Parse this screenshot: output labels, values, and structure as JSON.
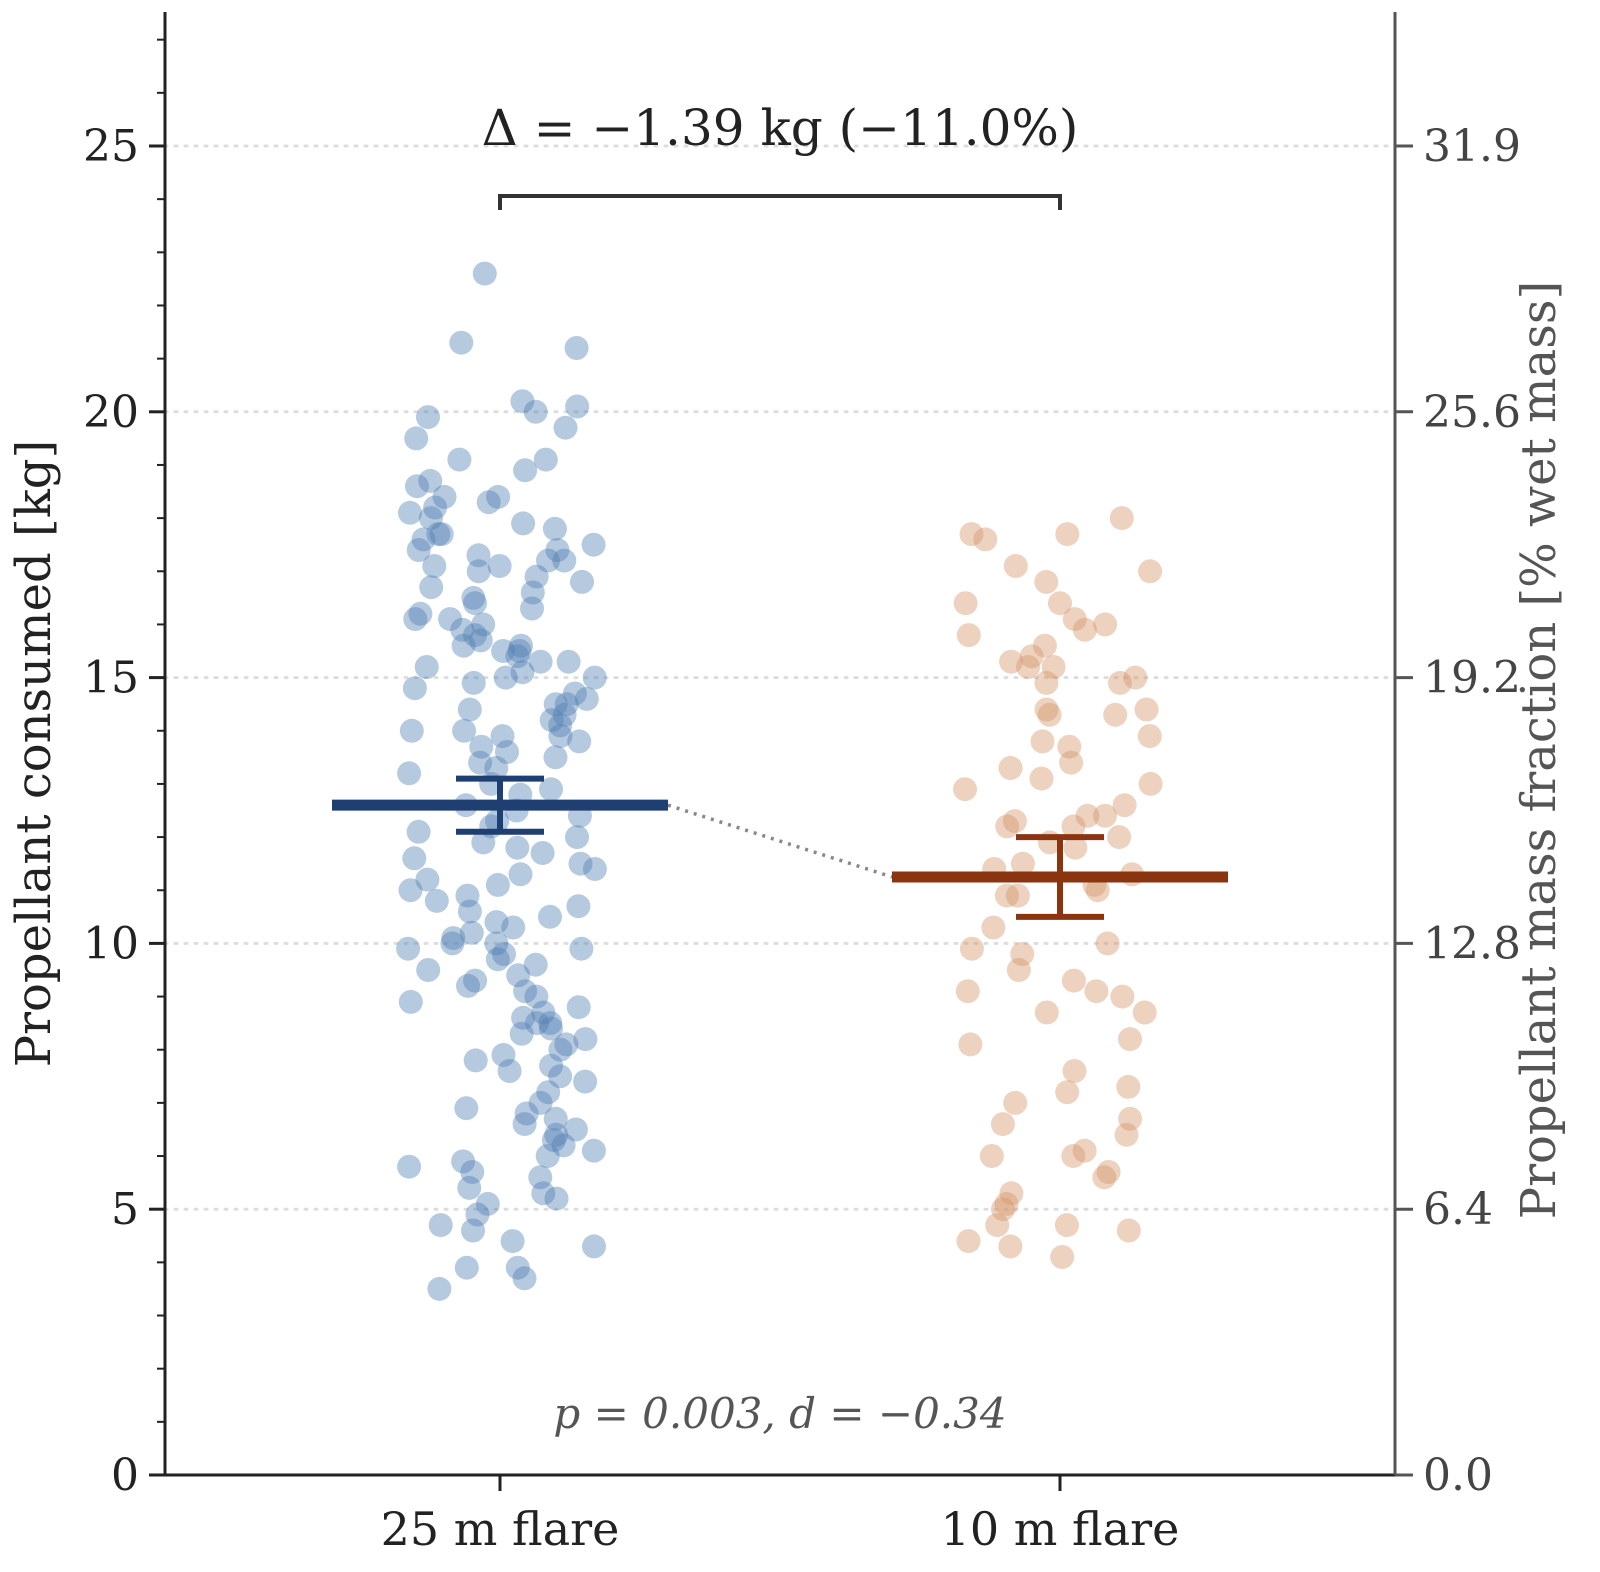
{
  "chart_data": {
    "type": "scatter",
    "subtype": "strip plot with mean and error bars",
    "categories": [
      "25 m flare",
      "10 m flare"
    ],
    "ylabel": "Propellant consumed [kg]",
    "ylabel_right": "Propellant mass fraction [% wet mass]",
    "ylim": [
      0,
      27.5
    ],
    "yticks": [
      0,
      5,
      10,
      15,
      20,
      25
    ],
    "yticks_right": [
      "0.0",
      "6.4",
      "12.8",
      "19.2",
      "25.6",
      "31.9"
    ],
    "grid": "horizontal dotted",
    "annotation_delta": "Δ = −1.39 kg (−11.0%)",
    "annotation_stats": "p = 0.003, d = −0.34",
    "colors": {
      "series_a": "#4f7fb3",
      "series_a_mean": "#1f3f73",
      "series_b": "#d4946a",
      "series_b_mean": "#8a3510",
      "axis": "#222222",
      "axis_right": "#555555",
      "grid": "#dddddd"
    },
    "series": [
      {
        "category": "25 m flare",
        "mean": 12.6,
        "ci": [
          12.1,
          13.1
        ],
        "values": [
          22.6,
          21.3,
          21.2,
          20.2,
          20.1,
          20.0,
          19.9,
          19.7,
          19.5,
          19.1,
          19.1,
          18.9,
          18.7,
          18.6,
          18.4,
          18.4,
          18.3,
          18.2,
          18.1,
          18.0,
          17.9,
          17.8,
          17.7,
          17.7,
          17.6,
          17.5,
          17.4,
          17.4,
          17.3,
          17.2,
          17.2,
          17.1,
          17.1,
          17.0,
          16.9,
          16.8,
          16.7,
          16.6,
          16.5,
          16.4,
          16.3,
          16.2,
          16.1,
          16.1,
          16.0,
          15.9,
          15.8,
          15.7,
          15.6,
          15.6,
          15.5,
          15.5,
          15.4,
          15.3,
          15.3,
          15.2,
          15.1,
          15.0,
          15.0,
          14.9,
          14.8,
          14.7,
          14.6,
          14.5,
          14.5,
          14.4,
          14.3,
          14.2,
          14.1,
          14.0,
          14.0,
          13.9,
          13.9,
          13.8,
          13.7,
          13.6,
          13.5,
          13.4,
          13.3,
          13.2,
          13.0,
          12.9,
          12.8,
          12.6,
          12.5,
          12.4,
          12.3,
          12.2,
          12.1,
          12.0,
          11.9,
          11.8,
          11.7,
          11.6,
          11.5,
          11.4,
          11.3,
          11.2,
          11.1,
          11.0,
          10.9,
          10.8,
          10.7,
          10.6,
          10.5,
          10.4,
          10.3,
          10.2,
          10.1,
          10.0,
          10.0,
          9.9,
          9.9,
          9.8,
          9.7,
          9.6,
          9.5,
          9.4,
          9.3,
          9.2,
          9.1,
          9.0,
          8.9,
          8.8,
          8.7,
          8.6,
          8.5,
          8.5,
          8.4,
          8.3,
          8.2,
          8.1,
          8.0,
          7.9,
          7.8,
          7.7,
          7.6,
          7.5,
          7.4,
          7.2,
          7.0,
          6.9,
          6.8,
          6.7,
          6.6,
          6.5,
          6.4,
          6.3,
          6.2,
          6.1,
          6.0,
          5.9,
          5.8,
          5.7,
          5.6,
          5.4,
          5.3,
          5.2,
          5.1,
          4.9,
          4.7,
          4.6,
          4.4,
          4.3,
          3.9,
          3.9,
          3.7,
          3.5
        ]
      },
      {
        "category": "10 m flare",
        "mean": 11.25,
        "ci": [
          10.5,
          12.0
        ],
        "values": [
          18.0,
          17.7,
          17.7,
          17.6,
          17.1,
          17.0,
          16.8,
          16.4,
          16.4,
          16.1,
          16.0,
          15.9,
          15.8,
          15.6,
          15.4,
          15.3,
          15.2,
          15.2,
          15.0,
          14.9,
          14.9,
          14.4,
          14.4,
          14.3,
          14.3,
          13.9,
          13.8,
          13.7,
          13.4,
          13.3,
          13.1,
          13.0,
          12.9,
          12.6,
          12.4,
          12.4,
          12.3,
          12.2,
          12.2,
          12.0,
          11.9,
          11.8,
          11.5,
          11.4,
          11.3,
          11.1,
          11.0,
          10.9,
          10.9,
          10.3,
          10.0,
          9.9,
          9.8,
          9.5,
          9.3,
          9.1,
          9.1,
          9.0,
          8.7,
          8.7,
          8.2,
          8.1,
          7.6,
          7.3,
          7.2,
          7.0,
          6.7,
          6.6,
          6.4,
          6.1,
          6.0,
          6.0,
          5.7,
          5.6,
          5.3,
          5.1,
          5.0,
          4.7,
          4.7,
          4.6,
          4.4,
          4.3,
          4.1
        ]
      }
    ]
  }
}
